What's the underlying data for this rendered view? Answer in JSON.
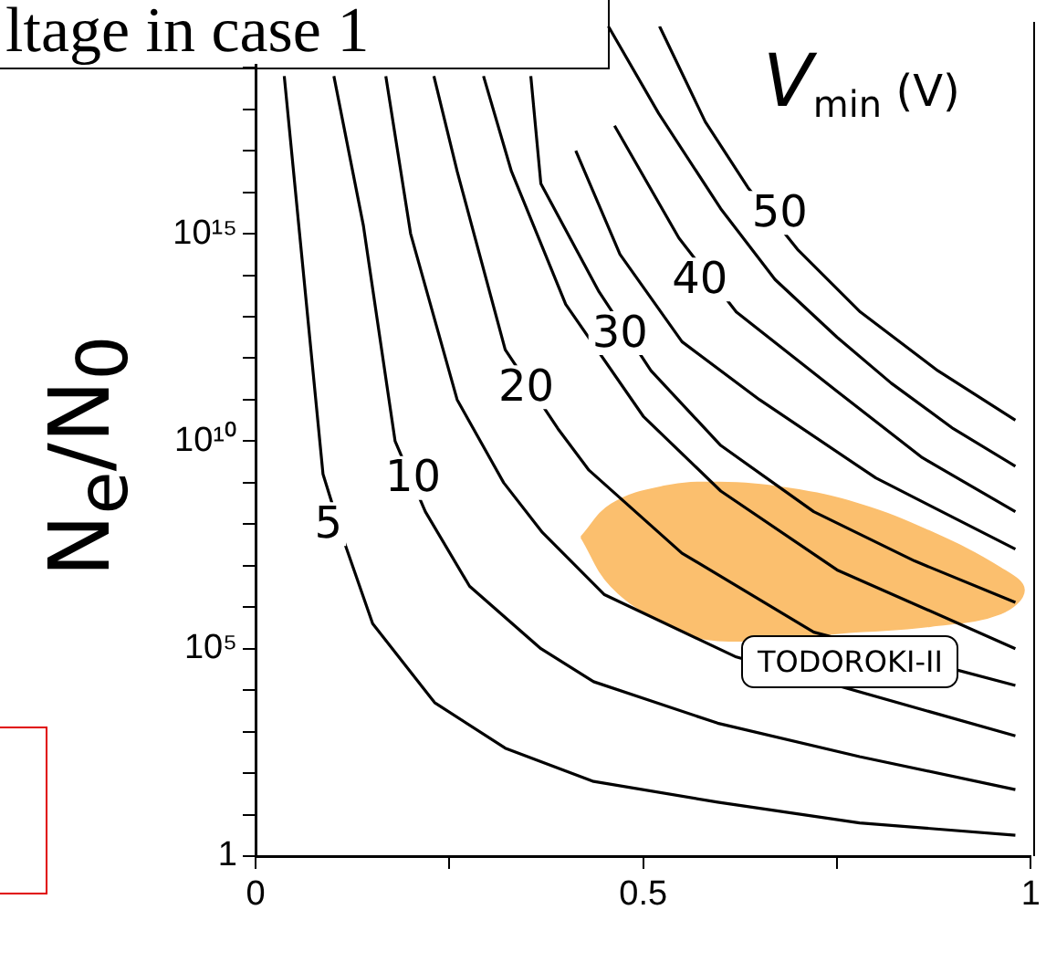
{
  "chart_data": {
    "type": "line",
    "title": "ltage in case 1",
    "ylabel": "N$_{e}$/N$_{0}$",
    "annotations": [
      "V$_{min}$ (V)",
      {
        "text": "5",
        "x": 0.094,
        "y": 100000000.0
      },
      {
        "text": "10",
        "x": 0.203,
        "y": 1300000000.0
      },
      {
        "text": "20",
        "x": 0.349,
        "y": 200000000000.0
      },
      {
        "text": "30",
        "x": 0.47,
        "y": 4000000000000.0
      },
      {
        "text": "40",
        "x": 0.573,
        "y": 79000000000000.0
      },
      {
        "text": "50",
        "x": 0.676,
        "y": 3200000000000000.0
      },
      "TODOROKI-II"
    ],
    "series": [
      {
        "type": "area",
        "color": "#fbbf6e",
        "x": [
          0.42,
          0.459,
          0.527,
          0.596,
          0.687,
          0.779,
          0.87,
          0.961,
          0.991,
          0.961,
          0.87,
          0.779,
          0.596,
          0.527,
          0.459,
          0.42
        ],
        "values": [
          49000000.0,
          300000000.0,
          810000000.0,
          1000000000.0,
          720000000.0,
          300000000.0,
          66000000.0,
          8700000.0,
          2600000.0,
          710000.0,
          350000.0,
          260000.0,
          160000.0,
          430000.0,
          3200000.0,
          49000000.0
        ]
      },
      {
        "color": "#000000",
        "x": [
          0.037,
          0.087,
          0.112,
          0.151,
          0.231,
          0.322,
          0.436,
          0.596,
          0.779,
          0.98
        ],
        "values": [
          6.3e+18,
          1600000000.0,
          50000000.0,
          400000.0,
          5000,
          400,
          63,
          20,
          6.3,
          3.2
        ]
      },
      {
        "color": "#000000",
        "x": [
          0.101,
          0.139,
          0.18,
          0.219,
          0.276,
          0.368,
          0.436,
          0.596,
          0.779,
          0.98
        ],
        "values": [
          6.3e+18,
          1600000000000000.0,
          10000000000.0,
          200000000.0,
          3200000.0,
          100000.0,
          16000.0,
          1600,
          250,
          40
        ]
      },
      {
        "color": "#000000",
        "x": [
          0.168,
          0.2,
          0.26,
          0.32,
          0.37,
          0.45,
          0.62,
          0.98
        ],
        "values": [
          6.3e+18,
          1000000000000000.0,
          100000000000.0,
          1000000000.0,
          63000000.0,
          2000000.0,
          63000.0,
          790
        ]
      },
      {
        "color": "#000000",
        "x": [
          0.23,
          0.26,
          0.322,
          0.39,
          0.43,
          0.55,
          0.72,
          0.98
        ],
        "values": [
          6.3e+18,
          3.2e+16,
          1600000000000.0,
          20000000000.0,
          2000000000.0,
          20000000.0,
          250000.0,
          13000.0
        ]
      },
      {
        "color": "#000000",
        "x": [
          0.294,
          0.33,
          0.4,
          0.5,
          0.6,
          0.75,
          0.98
        ],
        "values": [
          6.3e+18,
          3.2e+16,
          20000000000000.0,
          40000000000.0,
          630000000.0,
          7900000.0,
          100000.0
        ]
      },
      {
        "color": "#000000",
        "x": [
          0.355,
          0.368,
          0.443,
          0.51,
          0.6,
          0.72,
          0.85,
          0.98
        ],
        "values": [
          6.3e+18,
          1.6e+16,
          40000000000000.0,
          500000000000.0,
          7900000000.0,
          200000000.0,
          13000000.0,
          1300000.0
        ]
      },
      {
        "color": "#000000",
        "x": [
          0.413,
          0.47,
          0.55,
          0.65,
          0.8,
          0.98
        ],
        "values": [
          1e+17,
          320000000000000.0,
          2500000000000.0,
          100000000000.0,
          1300000000.0,
          25000000.0
        ]
      },
      {
        "color": "#000000",
        "x": [
          0.463,
          0.546,
          0.62,
          0.75,
          0.86,
          0.98
        ],
        "values": [
          4e+17,
          790000000000000.0,
          13000000000000.0,
          160000000000.0,
          4000000000.0,
          200000000.0
        ]
      },
      {
        "color": "#000000",
        "x": [
          0.455,
          0.52,
          0.6,
          0.67,
          0.75,
          0.82,
          0.9,
          0.98
        ],
        "values": [
          1e+20,
          7.9e+17,
          4000000000000000.0,
          79000000000000.0,
          3200000000000.0,
          250000000000.0,
          20000000000.0,
          2500000000.0
        ]
      },
      {
        "color": "#000000",
        "x": [
          0.521,
          0.58,
          0.635,
          0.7,
          0.78,
          0.88,
          0.98
        ],
        "values": [
          1e+20,
          5e+17,
          1.3e+16,
          400000000000000.0,
          13000000000000.0,
          500000000000.0,
          32000000000.0
        ]
      }
    ],
    "xlim": [
      0,
      1
    ],
    "xticks": [
      0,
      {
        "value": 0.25,
        "label": null
      },
      0.5,
      {
        "value": 0.75,
        "label": null
      },
      1
    ],
    "ylim": [
      1,
      1e+20
    ],
    "log": true,
    "yticks": [
      1,
      {
        "value": 10,
        "label": null
      },
      {
        "value": 100,
        "label": null
      },
      {
        "value": 1000,
        "label": null
      },
      {
        "value": 10000,
        "label": null
      },
      {
        "value": 100000,
        "label": "10⁵"
      },
      {
        "value": 1000000.0,
        "label": null
      },
      {
        "value": 10000000.0,
        "label": null
      },
      {
        "value": 100000000.0,
        "label": null
      },
      {
        "value": 1000000000.0,
        "label": null
      },
      {
        "value": 10000000000.0,
        "label": "10¹⁰"
      },
      {
        "value": 100000000000.0,
        "label": null
      },
      {
        "value": 1000000000000.0,
        "label": null
      },
      {
        "value": 10000000000000.0,
        "label": null
      },
      {
        "value": 100000000000000.0,
        "label": null
      },
      {
        "value": 1000000000000000.0,
        "label": "10¹⁵"
      },
      {
        "value": 1e+16,
        "label": null
      },
      {
        "value": 1e+17,
        "label": null
      },
      {
        "value": 1e+18,
        "label": null
      },
      {
        "value": 1e+19,
        "label": null
      }
    ],
    "grid": false,
    "legend": false,
    "marker": "none",
    "line_style": "solid"
  }
}
